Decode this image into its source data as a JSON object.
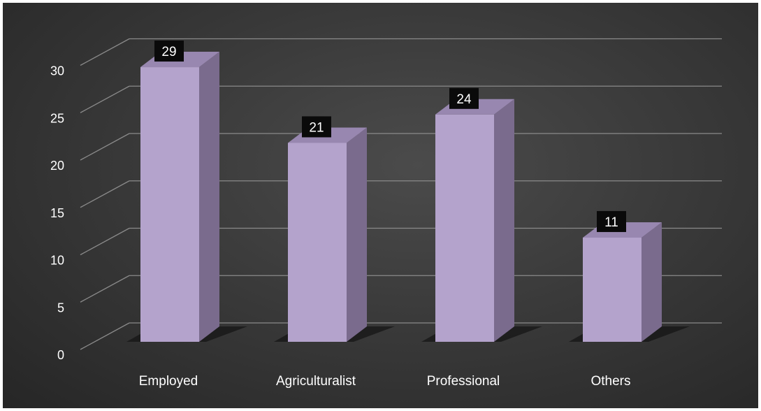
{
  "chart_data": {
    "type": "bar",
    "style": "3d-column",
    "categories": [
      "Employed",
      "Agriculturalist",
      "Professional",
      "Others"
    ],
    "values": [
      29,
      21,
      24,
      11
    ],
    "ylim": [
      0,
      30
    ],
    "yticks": [
      0,
      5,
      10,
      15,
      20,
      25,
      30
    ],
    "ytick_labels": [
      "0",
      "5",
      "10",
      "15",
      "20",
      "25",
      "30"
    ],
    "data_labels": [
      "29",
      "21",
      "24",
      "11"
    ],
    "grid": true,
    "legend": "none",
    "colors": {
      "bar_front": "#b4a3cc",
      "bar_side": "#7a6b8d",
      "bar_top": "#9887b0",
      "gridline": "#8a8a8a",
      "label_box": "#0a0a0a",
      "text": "#ffffff",
      "background": "#3a3a3a"
    }
  }
}
